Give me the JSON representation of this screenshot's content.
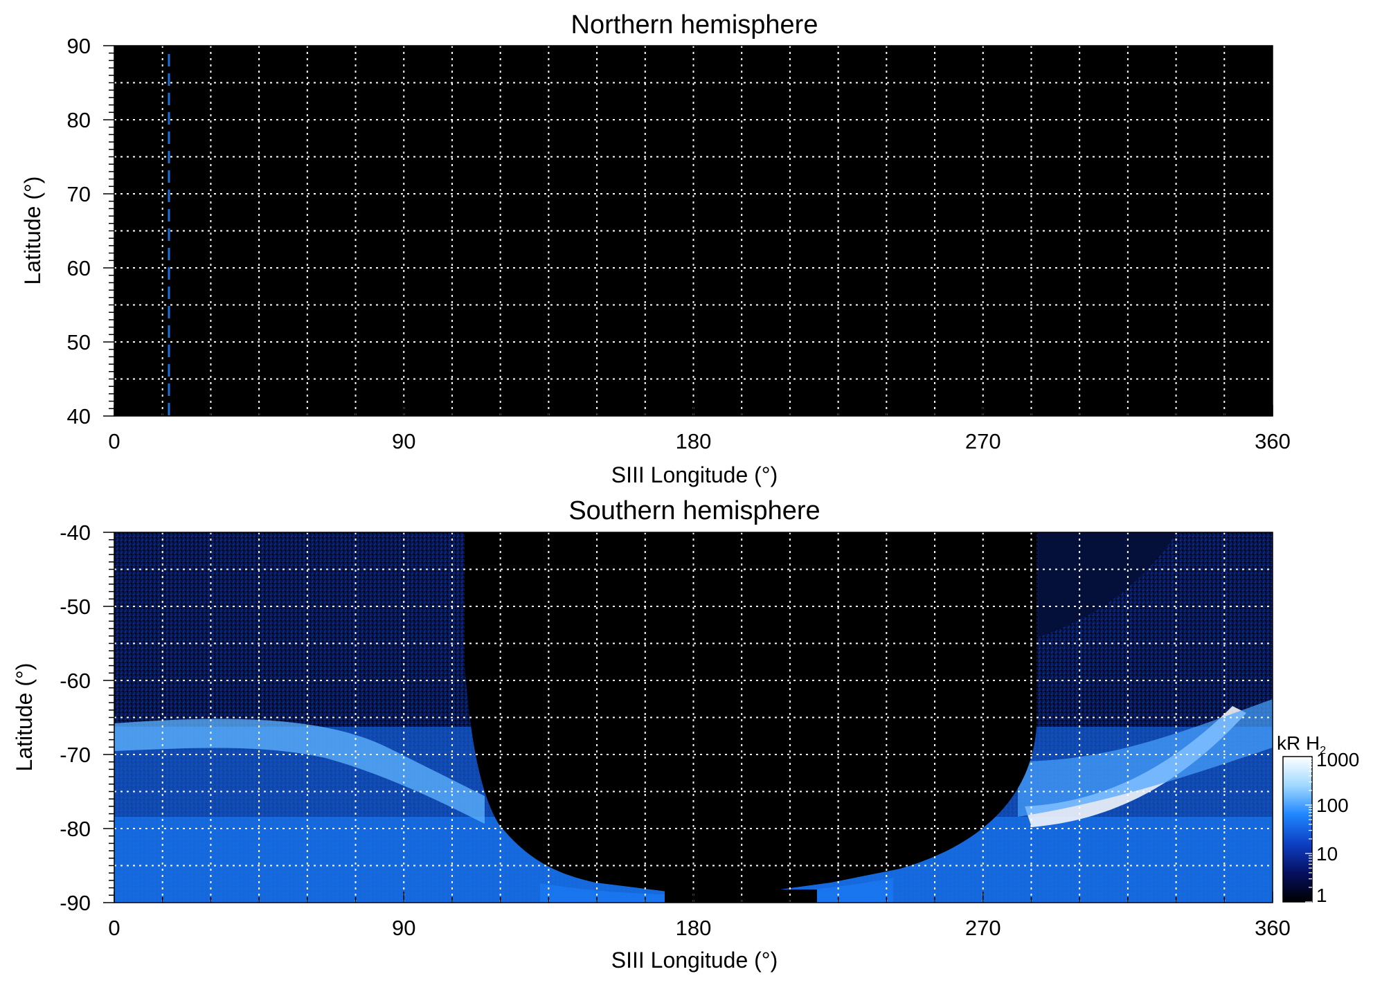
{
  "chart_data": [
    {
      "id": "north",
      "type": "heatmap",
      "title": "Northern hemisphere",
      "xlabel": "SIII Longitude (°)",
      "ylabel": "Latitude (°)",
      "xlim": [
        0,
        360
      ],
      "ylim": [
        40,
        90
      ],
      "x_ticks": [
        0,
        90,
        180,
        270,
        360
      ],
      "y_ticks": [
        40,
        50,
        60,
        70,
        80,
        90
      ],
      "x_grid_step": 15,
      "y_grid_step": 5,
      "grid": true,
      "background": "#000000",
      "marker_line": {
        "longitude": 17,
        "style": "dashed",
        "color": "#1e6fd9"
      }
    },
    {
      "id": "south",
      "type": "heatmap",
      "title": "Southern hemisphere",
      "xlabel": "SIII Longitude (°)",
      "ylabel": "Latitude (°)",
      "xlim": [
        0,
        360
      ],
      "ylim": [
        -90,
        -40
      ],
      "x_ticks": [
        0,
        90,
        180,
        270,
        360
      ],
      "y_ticks": [
        -90,
        -80,
        -70,
        -60,
        -50,
        -40
      ],
      "x_grid_step": 15,
      "y_grid_step": 5,
      "grid": true,
      "background": "#000000",
      "no_data_region": {
        "lon_range": [
          109,
          286
        ],
        "lat_edge": -90
      },
      "bright_oval_features": [
        {
          "lon_range": [
            0,
            90
          ],
          "lat_center": -67
        },
        {
          "lon_range": [
            290,
            350
          ],
          "lat_center": -76
        }
      ],
      "colorbar": {
        "label": "kR H",
        "label_subscript": "2",
        "scale": "log",
        "range": [
          1,
          1000
        ],
        "ticks": [
          1,
          10,
          100,
          1000
        ],
        "colors": [
          "#000000",
          "#061060",
          "#0d3fc4",
          "#1f86ff",
          "#9fd8ff",
          "#ffffff"
        ]
      }
    }
  ]
}
